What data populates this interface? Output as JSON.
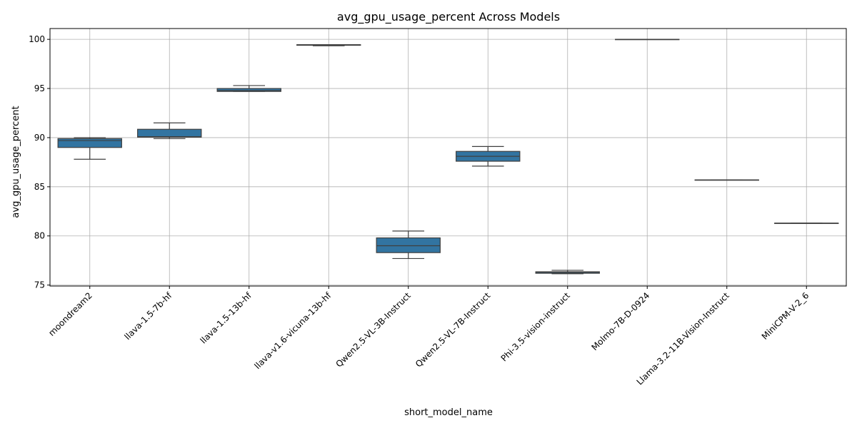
{
  "chart_data": {
    "type": "box",
    "title": "avg_gpu_usage_percent Across Models",
    "xlabel": "short_model_name",
    "ylabel": "avg_gpu_usage_percent",
    "ylim": [
      74.9,
      101.1
    ],
    "yticks": [
      75,
      80,
      85,
      90,
      95,
      100
    ],
    "grid": true,
    "box_color": "#3274a1",
    "categories": [
      "moondream2",
      "llava-1.5-7b-hf",
      "llava-1.5-13b-hf",
      "llava-v1.6-vicuna-13b-hf",
      "Qwen2.5-VL-3B-Instruct",
      "Qwen2.5-VL-7B-Instruct",
      "Phi-3.5-vision-instruct",
      "Molmo-7B-D-0924",
      "Llama-3.2-11B-Vision-Instruct",
      "MiniCPM-V-2_6"
    ],
    "boxes": [
      {
        "whislo": 87.8,
        "q1": 89.0,
        "med": 89.7,
        "q3": 89.9,
        "whishi": 90.0
      },
      {
        "whislo": 89.9,
        "q1": 90.05,
        "med": 90.1,
        "q3": 90.85,
        "whishi": 91.5
      },
      {
        "whislo": 94.7,
        "q1": 94.7,
        "med": 94.8,
        "q3": 95.0,
        "whishi": 95.3
      },
      {
        "whislo": 99.35,
        "q1": 99.4,
        "med": 99.45,
        "q3": 99.45,
        "whishi": 99.45
      },
      {
        "whislo": 77.7,
        "q1": 78.3,
        "med": 79.0,
        "q3": 79.8,
        "whishi": 80.5
      },
      {
        "whislo": 87.1,
        "q1": 87.6,
        "med": 88.1,
        "q3": 88.6,
        "whishi": 89.1
      },
      {
        "whislo": 76.15,
        "q1": 76.2,
        "med": 76.3,
        "q3": 76.35,
        "whishi": 76.5
      },
      {
        "whislo": 100.0,
        "q1": 100.0,
        "med": 100.0,
        "q3": 100.0,
        "whishi": 100.0
      },
      {
        "whislo": 85.7,
        "q1": 85.7,
        "med": 85.7,
        "q3": 85.7,
        "whishi": 85.7
      },
      {
        "whislo": 81.3,
        "q1": 81.3,
        "med": 81.3,
        "q3": 81.3,
        "whishi": 81.3
      }
    ]
  }
}
